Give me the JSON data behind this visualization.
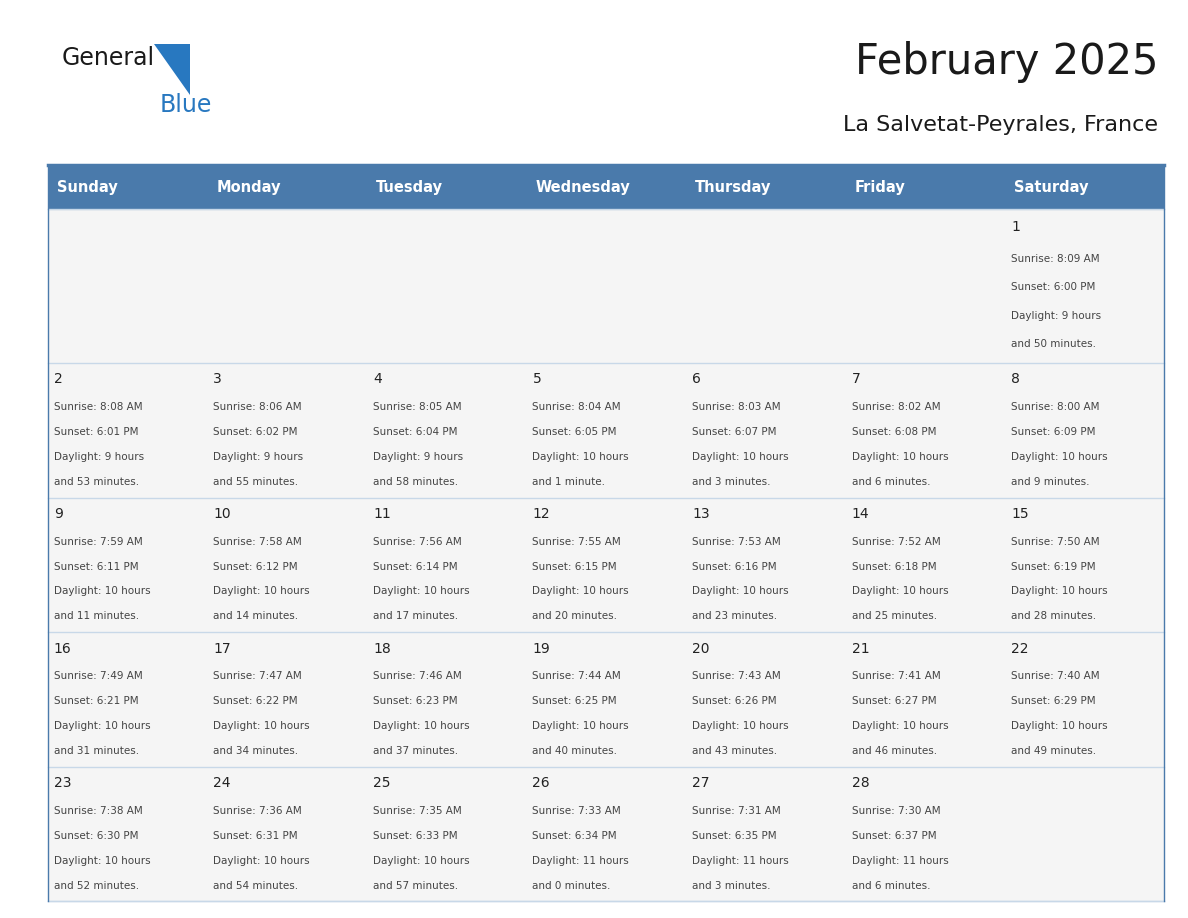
{
  "title": "February 2025",
  "subtitle": "La Salvetat-Peyrales, France",
  "days_of_week": [
    "Sunday",
    "Monday",
    "Tuesday",
    "Wednesday",
    "Thursday",
    "Friday",
    "Saturday"
  ],
  "header_bg": "#4a7aab",
  "header_text": "#ffffff",
  "cell_bg": "#f5f5f5",
  "border_color": "#4a7aab",
  "border_color_light": "#c8d8e8",
  "text_color": "#333333",
  "day_num_color": "#222222",
  "logo_dark_color": "#1a1a1a",
  "logo_blue_color": "#2577c0",
  "calendar_data": [
    [
      null,
      null,
      null,
      null,
      null,
      null,
      {
        "day": 1,
        "sunrise": "8:09 AM",
        "sunset": "6:00 PM",
        "daylight": "9 hours and 50 minutes"
      }
    ],
    [
      {
        "day": 2,
        "sunrise": "8:08 AM",
        "sunset": "6:01 PM",
        "daylight": "9 hours and 53 minutes"
      },
      {
        "day": 3,
        "sunrise": "8:06 AM",
        "sunset": "6:02 PM",
        "daylight": "9 hours and 55 minutes"
      },
      {
        "day": 4,
        "sunrise": "8:05 AM",
        "sunset": "6:04 PM",
        "daylight": "9 hours and 58 minutes"
      },
      {
        "day": 5,
        "sunrise": "8:04 AM",
        "sunset": "6:05 PM",
        "daylight": "10 hours and 1 minute"
      },
      {
        "day": 6,
        "sunrise": "8:03 AM",
        "sunset": "6:07 PM",
        "daylight": "10 hours and 3 minutes"
      },
      {
        "day": 7,
        "sunrise": "8:02 AM",
        "sunset": "6:08 PM",
        "daylight": "10 hours and 6 minutes"
      },
      {
        "day": 8,
        "sunrise": "8:00 AM",
        "sunset": "6:09 PM",
        "daylight": "10 hours and 9 minutes"
      }
    ],
    [
      {
        "day": 9,
        "sunrise": "7:59 AM",
        "sunset": "6:11 PM",
        "daylight": "10 hours and 11 minutes"
      },
      {
        "day": 10,
        "sunrise": "7:58 AM",
        "sunset": "6:12 PM",
        "daylight": "10 hours and 14 minutes"
      },
      {
        "day": 11,
        "sunrise": "7:56 AM",
        "sunset": "6:14 PM",
        "daylight": "10 hours and 17 minutes"
      },
      {
        "day": 12,
        "sunrise": "7:55 AM",
        "sunset": "6:15 PM",
        "daylight": "10 hours and 20 minutes"
      },
      {
        "day": 13,
        "sunrise": "7:53 AM",
        "sunset": "6:16 PM",
        "daylight": "10 hours and 23 minutes"
      },
      {
        "day": 14,
        "sunrise": "7:52 AM",
        "sunset": "6:18 PM",
        "daylight": "10 hours and 25 minutes"
      },
      {
        "day": 15,
        "sunrise": "7:50 AM",
        "sunset": "6:19 PM",
        "daylight": "10 hours and 28 minutes"
      }
    ],
    [
      {
        "day": 16,
        "sunrise": "7:49 AM",
        "sunset": "6:21 PM",
        "daylight": "10 hours and 31 minutes"
      },
      {
        "day": 17,
        "sunrise": "7:47 AM",
        "sunset": "6:22 PM",
        "daylight": "10 hours and 34 minutes"
      },
      {
        "day": 18,
        "sunrise": "7:46 AM",
        "sunset": "6:23 PM",
        "daylight": "10 hours and 37 minutes"
      },
      {
        "day": 19,
        "sunrise": "7:44 AM",
        "sunset": "6:25 PM",
        "daylight": "10 hours and 40 minutes"
      },
      {
        "day": 20,
        "sunrise": "7:43 AM",
        "sunset": "6:26 PM",
        "daylight": "10 hours and 43 minutes"
      },
      {
        "day": 21,
        "sunrise": "7:41 AM",
        "sunset": "6:27 PM",
        "daylight": "10 hours and 46 minutes"
      },
      {
        "day": 22,
        "sunrise": "7:40 AM",
        "sunset": "6:29 PM",
        "daylight": "10 hours and 49 minutes"
      }
    ],
    [
      {
        "day": 23,
        "sunrise": "7:38 AM",
        "sunset": "6:30 PM",
        "daylight": "10 hours and 52 minutes"
      },
      {
        "day": 24,
        "sunrise": "7:36 AM",
        "sunset": "6:31 PM",
        "daylight": "10 hours and 54 minutes"
      },
      {
        "day": 25,
        "sunrise": "7:35 AM",
        "sunset": "6:33 PM",
        "daylight": "10 hours and 57 minutes"
      },
      {
        "day": 26,
        "sunrise": "7:33 AM",
        "sunset": "6:34 PM",
        "daylight": "11 hours and 0 minutes"
      },
      {
        "day": 27,
        "sunrise": "7:31 AM",
        "sunset": "6:35 PM",
        "daylight": "11 hours and 3 minutes"
      },
      {
        "day": 28,
        "sunrise": "7:30 AM",
        "sunset": "6:37 PM",
        "daylight": "11 hours and 6 minutes"
      },
      null
    ]
  ]
}
